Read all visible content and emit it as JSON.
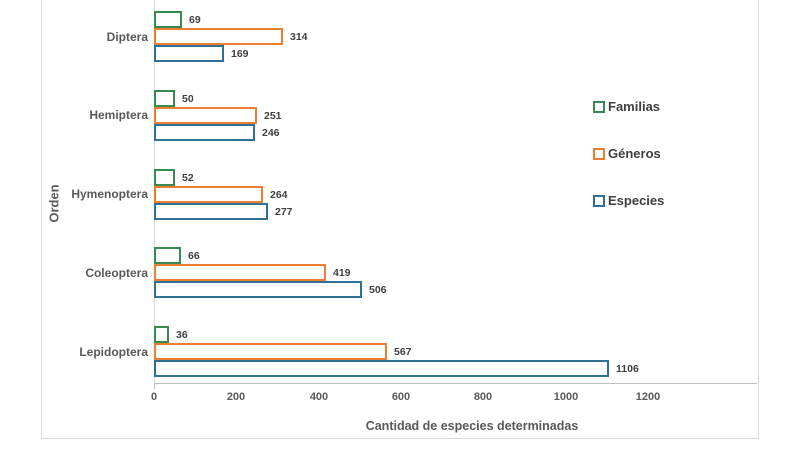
{
  "chart_data": {
    "type": "bar",
    "orientation": "horizontal",
    "title": "",
    "xlabel": "Cantidad de especies determinadas",
    "ylabel": "Orden",
    "xlim": [
      0,
      1200
    ],
    "xticks": [
      0,
      200,
      400,
      600,
      800,
      1000,
      1200
    ],
    "grid": false,
    "bar_style": "outlined",
    "legend_position": "right",
    "categories": [
      "Diptera",
      "Hemiptera",
      "Hymenoptera",
      "Coleoptera",
      "Lepidoptera"
    ],
    "series": [
      {
        "name": "Familias",
        "color": "#388a50",
        "values": [
          69,
          50,
          52,
          66,
          36
        ]
      },
      {
        "name": "Géneros",
        "color": "#ed7d31",
        "values": [
          314,
          251,
          264,
          419,
          567
        ]
      },
      {
        "name": "Especies",
        "color": "#2f7196",
        "values": [
          169,
          246,
          277,
          506,
          1106
        ]
      }
    ]
  },
  "colors": {
    "frame_border": "#d9d9d9",
    "axis_line": "#bfbfbf",
    "text_dark": "#404040",
    "text_medium": "#595959",
    "background": "#ffffff"
  }
}
